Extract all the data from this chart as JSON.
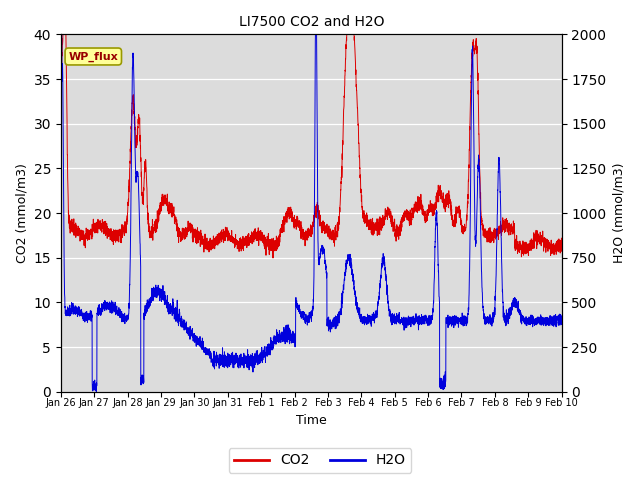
{
  "title": "LI7500 CO2 and H2O",
  "xlabel": "Time",
  "ylabel_left": "CO2 (mmol/m3)",
  "ylabel_right": "H2O (mmol/m3)",
  "co2_color": "#dd0000",
  "h2o_color": "#0000dd",
  "ylim_left": [
    0,
    40
  ],
  "ylim_right": [
    0,
    2000
  ],
  "background_color": "#dcdcdc",
  "legend_label_co2": "CO2",
  "legend_label_h2o": "H2O",
  "annotation_text": "WP_flux",
  "xtick_labels": [
    "Jan 26",
    "Jan 27",
    "Jan 28",
    "Jan 29",
    "Jan 30",
    "Jan 31",
    "Feb 1",
    "Feb 2",
    "Feb 3",
    "Feb 4",
    "Feb 5",
    "Feb 6",
    "Feb 7",
    "Feb 8",
    "Feb 9",
    "Feb 10"
  ],
  "n_points": 4000
}
